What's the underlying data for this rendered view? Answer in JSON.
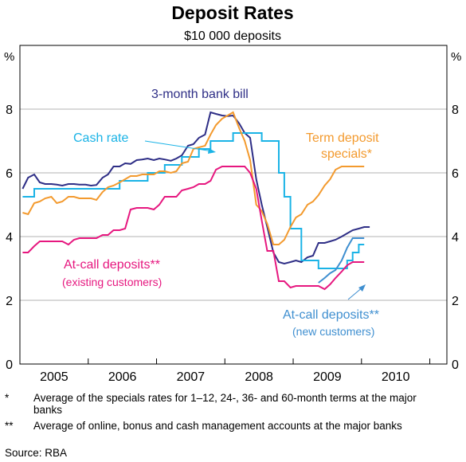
{
  "chart_data": {
    "type": "line",
    "title": "Deposit Rates",
    "subtitle": "$10 000 deposits",
    "ylabel_left": "%",
    "ylabel_right": "%",
    "ylim": [
      0,
      10
    ],
    "yticks": [
      0,
      2,
      4,
      6,
      8
    ],
    "xlim": [
      2004.5,
      2010.75
    ],
    "x_tick_labels": [
      "2005",
      "2006",
      "2007",
      "2008",
      "2009",
      "2010"
    ],
    "x_tick_centers": [
      2005.0,
      2006.0,
      2007.0,
      2008.0,
      2009.0,
      2010.0
    ],
    "grid": true,
    "series": [
      {
        "name": "3-month bank bill",
        "color": "#2e2e86",
        "step": false,
        "x": [
          2004.54,
          2004.62,
          2004.71,
          2004.79,
          2004.87,
          2004.96,
          2005.04,
          2005.12,
          2005.21,
          2005.29,
          2005.37,
          2005.46,
          2005.54,
          2005.62,
          2005.71,
          2005.79,
          2005.87,
          2005.96,
          2006.04,
          2006.12,
          2006.21,
          2006.29,
          2006.37,
          2006.46,
          2006.54,
          2006.62,
          2006.71,
          2006.79,
          2006.87,
          2006.96,
          2007.04,
          2007.12,
          2007.21,
          2007.29,
          2007.37,
          2007.46,
          2007.54,
          2007.62,
          2007.71,
          2007.79,
          2007.87,
          2007.96,
          2008.04,
          2008.12,
          2008.21,
          2008.29,
          2008.37,
          2008.46,
          2008.54,
          2008.62,
          2008.71,
          2008.79,
          2008.87,
          2008.96,
          2009.04,
          2009.12,
          2009.21,
          2009.29,
          2009.37,
          2009.46,
          2009.54,
          2009.62
        ],
        "values": [
          5.5,
          5.85,
          5.95,
          5.7,
          5.65,
          5.65,
          5.63,
          5.6,
          5.65,
          5.65,
          5.63,
          5.63,
          5.6,
          5.62,
          5.85,
          5.95,
          6.2,
          6.2,
          6.3,
          6.28,
          6.4,
          6.42,
          6.45,
          6.4,
          6.45,
          6.42,
          6.38,
          6.45,
          6.55,
          6.85,
          6.9,
          7.1,
          7.2,
          7.9,
          7.85,
          7.8,
          7.78,
          7.8,
          7.55,
          7.25,
          7.1,
          5.8,
          5.0,
          4.3,
          3.5,
          3.2,
          3.15,
          3.2,
          3.25,
          3.2,
          3.35,
          3.4,
          3.8,
          3.8,
          3.85,
          3.9,
          4.0,
          4.1,
          4.2,
          4.25,
          4.3,
          4.3
        ]
      },
      {
        "name": "Cash rate",
        "color": "#1ab3e6",
        "step": true,
        "x": [
          2004.54,
          2004.71,
          2005.21,
          2005.96,
          2006.37,
          2006.62,
          2006.87,
          2007.12,
          2007.29,
          2007.62,
          2007.87,
          2008.04,
          2008.29,
          2008.37,
          2008.46,
          2008.62,
          2008.87,
          2009.04,
          2009.29,
          2009.37,
          2009.46,
          2009.54
        ],
        "values": [
          5.25,
          5.5,
          5.5,
          5.75,
          6.0,
          6.25,
          6.5,
          6.75,
          7.0,
          7.25,
          7.25,
          7.0,
          6.0,
          5.25,
          4.25,
          3.25,
          3.0,
          3.0,
          3.25,
          3.5,
          3.75,
          3.75
        ]
      },
      {
        "name": "Term deposit specials*",
        "color": "#f39a2e",
        "step": false,
        "x": [
          2004.54,
          2004.62,
          2004.71,
          2004.79,
          2004.87,
          2004.96,
          2005.04,
          2005.12,
          2005.21,
          2005.29,
          2005.37,
          2005.46,
          2005.54,
          2005.62,
          2005.71,
          2005.79,
          2005.87,
          2005.96,
          2006.04,
          2006.12,
          2006.21,
          2006.29,
          2006.37,
          2006.46,
          2006.54,
          2006.62,
          2006.71,
          2006.79,
          2006.87,
          2006.96,
          2007.04,
          2007.12,
          2007.21,
          2007.29,
          2007.37,
          2007.46,
          2007.54,
          2007.62,
          2007.71,
          2007.79,
          2007.87,
          2007.96,
          2008.04,
          2008.12,
          2008.21,
          2008.29,
          2008.37,
          2008.46,
          2008.54,
          2008.62,
          2008.71,
          2008.79,
          2008.87,
          2008.96,
          2009.04,
          2009.12,
          2009.21,
          2009.29,
          2009.37,
          2009.46,
          2009.54
        ],
        "values": [
          4.75,
          4.7,
          5.05,
          5.1,
          5.2,
          5.25,
          5.05,
          5.1,
          5.25,
          5.25,
          5.2,
          5.2,
          5.2,
          5.15,
          5.4,
          5.55,
          5.6,
          5.7,
          5.8,
          5.9,
          5.9,
          5.95,
          5.95,
          5.95,
          6.05,
          6.05,
          6.0,
          6.05,
          6.3,
          6.35,
          6.75,
          6.8,
          6.85,
          7.2,
          7.5,
          7.7,
          7.8,
          7.9,
          7.4,
          7.0,
          6.4,
          5.0,
          4.8,
          4.4,
          3.75,
          3.75,
          3.9,
          4.3,
          4.6,
          4.7,
          5.0,
          5.1,
          5.3,
          5.6,
          5.8,
          6.1,
          6.2,
          6.2,
          6.2,
          6.2,
          6.2
        ]
      },
      {
        "name": "At-call deposits** (existing customers)",
        "color": "#e6177f",
        "step": false,
        "x": [
          2004.54,
          2004.62,
          2004.71,
          2004.79,
          2004.87,
          2004.96,
          2005.04,
          2005.12,
          2005.21,
          2005.29,
          2005.37,
          2005.46,
          2005.54,
          2005.62,
          2005.71,
          2005.79,
          2005.87,
          2005.96,
          2006.04,
          2006.12,
          2006.21,
          2006.29,
          2006.37,
          2006.46,
          2006.54,
          2006.62,
          2006.71,
          2006.79,
          2006.87,
          2006.96,
          2007.04,
          2007.12,
          2007.21,
          2007.29,
          2007.37,
          2007.46,
          2007.54,
          2007.62,
          2007.71,
          2007.79,
          2007.87,
          2007.96,
          2008.04,
          2008.12,
          2008.21,
          2008.29,
          2008.37,
          2008.46,
          2008.54,
          2008.62,
          2008.71,
          2008.79,
          2008.87,
          2008.96,
          2009.04,
          2009.12,
          2009.21,
          2009.29,
          2009.37,
          2009.46,
          2009.54
        ],
        "values": [
          3.5,
          3.5,
          3.7,
          3.85,
          3.85,
          3.85,
          3.85,
          3.85,
          3.75,
          3.9,
          3.95,
          3.95,
          3.95,
          3.95,
          4.05,
          4.05,
          4.2,
          4.2,
          4.25,
          4.85,
          4.9,
          4.9,
          4.9,
          4.85,
          5.0,
          5.25,
          5.25,
          5.25,
          5.45,
          5.5,
          5.55,
          5.65,
          5.65,
          5.75,
          6.1,
          6.2,
          6.2,
          6.2,
          6.2,
          6.2,
          6.0,
          5.5,
          4.5,
          3.55,
          3.55,
          2.6,
          2.6,
          2.4,
          2.45,
          2.45,
          2.45,
          2.45,
          2.45,
          2.35,
          2.5,
          2.7,
          2.9,
          3.1,
          3.2,
          3.2,
          3.2
        ]
      },
      {
        "name": "At-call deposits** (new customers)",
        "color": "#3f8fd0",
        "step": false,
        "x": [
          2008.87,
          2008.96,
          2009.04,
          2009.12,
          2009.21,
          2009.29,
          2009.37,
          2009.46,
          2009.54
        ],
        "values": [
          2.55,
          2.7,
          2.85,
          2.95,
          3.25,
          3.65,
          3.95,
          3.95,
          3.95
        ]
      }
    ],
    "annotations": [
      {
        "id": "bank_bill",
        "text": "3-month bank bill",
        "color": "#2e2e86"
      },
      {
        "id": "cash_rate",
        "text": "Cash rate",
        "color": "#1ab3e6"
      },
      {
        "id": "term_1",
        "text": "Term deposit",
        "color": "#f39a2e"
      },
      {
        "id": "term_2",
        "text": "specials*",
        "color": "#f39a2e"
      },
      {
        "id": "atcall_old_1",
        "text": "At-call deposits**",
        "color": "#e6177f"
      },
      {
        "id": "atcall_old_2",
        "text": "(existing customers)",
        "color": "#e6177f"
      },
      {
        "id": "atcall_new_1",
        "text": "At-call deposits**",
        "color": "#3f8fd0"
      },
      {
        "id": "atcall_new_2",
        "text": "(new customers)",
        "color": "#3f8fd0"
      }
    ]
  },
  "footnotes": [
    {
      "mark": "*",
      "text": "Average of the specials rates for 1–12, 24-, 36- and 60-month terms at the major banks"
    },
    {
      "mark": "**",
      "text": "Average of online, bonus and cash management accounts at the major banks"
    }
  ],
  "source": "Source: RBA"
}
